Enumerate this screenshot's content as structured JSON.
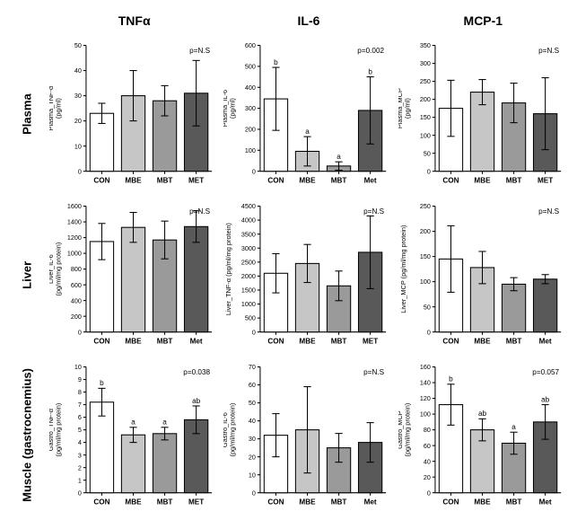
{
  "columns": [
    "TNFα",
    "IL-6",
    "MCP-1"
  ],
  "rows": [
    "Plasma",
    "Liver",
    "Muscle (gastrocnemius)"
  ],
  "bar_colors": [
    "#ffffff",
    "#c6c6c6",
    "#9a9a9a",
    "#595959"
  ],
  "categories": [
    "CON",
    "MBE",
    "MBT",
    "MET"
  ],
  "categories_alt": [
    "CON",
    "MBE",
    "MBT",
    "Met"
  ],
  "axis_color": "#000000",
  "background": "#ffffff",
  "tick_fontsize": 7,
  "cat_fontsize": 8,
  "ylabel_fontsize": 7,
  "pvalue_fontsize": 8,
  "header_fontsize": 14,
  "row_header_fontsize": 13,
  "bar_width_ratio": 0.75,
  "charts": [
    [
      {
        "ylabel": "Plasma_TNF-α\n(pg/ml)",
        "ylim": [
          0,
          50
        ],
        "ytick_step": 10,
        "values": [
          23,
          30,
          28,
          31
        ],
        "errors": [
          4,
          10,
          6,
          13
        ],
        "pvalue": "p=N.S",
        "sig": [
          "",
          "",
          "",
          ""
        ],
        "categories_key": "categories"
      },
      {
        "ylabel": "Plasma_IL-6\n(pg/ml)",
        "ylim": [
          0,
          600
        ],
        "ytick_step": 100,
        "values": [
          345,
          95,
          25,
          290
        ],
        "errors": [
          150,
          70,
          20,
          160
        ],
        "pvalue": "p=0.002",
        "sig": [
          "b",
          "a",
          "a",
          "b"
        ],
        "categories_key": "categories_alt"
      },
      {
        "ylabel": "Plasma_MCP\n(pg/ml)",
        "ylim": [
          0,
          350
        ],
        "ytick_step": 50,
        "values": [
          175,
          220,
          190,
          160
        ],
        "errors": [
          78,
          35,
          55,
          100
        ],
        "pvalue": "p=N.S",
        "sig": [
          "",
          "",
          "",
          ""
        ],
        "categories_key": "categories"
      }
    ],
    [
      {
        "ylabel": "Liver_IL-6\n(pg/ml/mg protein)",
        "ylim": [
          0,
          1600
        ],
        "ytick_step": 200,
        "values": [
          1150,
          1330,
          1170,
          1340
        ],
        "errors": [
          230,
          190,
          240,
          200
        ],
        "pvalue": "p=N.S",
        "sig": [
          "",
          "",
          "",
          ""
        ],
        "categories_key": "categories_alt"
      },
      {
        "ylabel": "Liver_TNF-α (pg/ml/mg protein)",
        "ylim": [
          0,
          4500
        ],
        "ytick_step": 500,
        "values": [
          2100,
          2450,
          1650,
          2850
        ],
        "errors": [
          700,
          680,
          530,
          1300
        ],
        "pvalue": "p=N.S",
        "sig": [
          "",
          "",
          "",
          ""
        ],
        "categories_key": "categories"
      },
      {
        "ylabel": "Liver_MCP (pg/ml/mg protein)",
        "ylim": [
          0,
          250
        ],
        "ytick_step": 50,
        "values": [
          145,
          128,
          95,
          105
        ],
        "errors": [
          66,
          32,
          13,
          9
        ],
        "pvalue": "p=N.S",
        "sig": [
          "",
          "",
          "",
          ""
        ],
        "categories_key": "categories_alt"
      }
    ],
    [
      {
        "ylabel": "Gastro_TNF-α\n(pg/ml/mg protein)",
        "ylim": [
          0,
          10
        ],
        "ytick_step": 1,
        "values": [
          7.2,
          4.6,
          4.7,
          5.8
        ],
        "errors": [
          1.1,
          0.6,
          0.5,
          1.1
        ],
        "pvalue": "p=0.038",
        "sig": [
          "b",
          "a",
          "a",
          "ab"
        ],
        "categories_key": "categories"
      },
      {
        "ylabel": "Gastro_IL-6\n(pg/ml/mg protein)",
        "ylim": [
          0,
          70
        ],
        "ytick_step": 10,
        "values": [
          32,
          35,
          25,
          28
        ],
        "errors": [
          12,
          24,
          8,
          11
        ],
        "pvalue": "p=N.S",
        "sig": [
          "",
          "",
          "",
          ""
        ],
        "categories_key": "categories_alt"
      },
      {
        "ylabel": "Gastro_MCP\n(pg/ml/mg protein)",
        "ylim": [
          0,
          160
        ],
        "ytick_step": 20,
        "values": [
          112,
          80,
          63,
          90
        ],
        "errors": [
          26,
          14,
          14,
          22
        ],
        "pvalue": "p=0.057",
        "sig": [
          "b",
          "ab",
          "a",
          "ab"
        ],
        "categories_key": "categories_alt"
      }
    ]
  ]
}
